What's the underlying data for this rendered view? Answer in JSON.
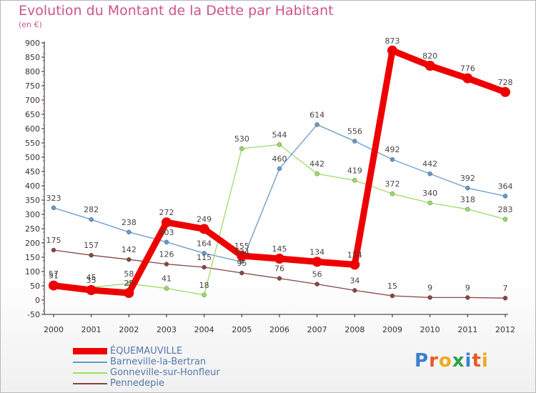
{
  "header": {
    "title": "Evolution du Montant de la Dette par Habitant",
    "subtitle": "(en €)"
  },
  "logo": {
    "text": "Proxiti",
    "colors": [
      "#3a7fd0",
      "#e85b2a",
      "#f2a81d",
      "#2aa34a",
      "#3a7fd0",
      "#e85b2a",
      "#f2a81d"
    ]
  },
  "chart_data": {
    "type": "line",
    "title": "Evolution du Montant de la Dette par Habitant",
    "subtitle": "(en €)",
    "xlabel": "",
    "ylabel": "",
    "x": [
      "2000",
      "2001",
      "2002",
      "2003",
      "2004",
      "2005",
      "2006",
      "2007",
      "2008",
      "2009",
      "2010",
      "2011",
      "2012"
    ],
    "ylim": [
      -50,
      900
    ],
    "yticks": [
      -50,
      0,
      50,
      100,
      150,
      200,
      250,
      300,
      350,
      400,
      450,
      500,
      550,
      600,
      650,
      700,
      750,
      800,
      850,
      900
    ],
    "grid": false,
    "legend_position": "bottom-left",
    "series": [
      {
        "name": "ÉQUEMAUVILLE",
        "color": "#ee0000",
        "values": [
          51,
          35,
          25,
          272,
          249,
          155,
          145,
          134,
          124,
          873,
          820,
          776,
          728
        ],
        "labels": [
          "51",
          "35",
          "25",
          "272",
          "249",
          "155",
          "145",
          "134",
          "124",
          "873",
          "820",
          "776",
          "728"
        ]
      },
      {
        "name": "Barneville-la-Bertran",
        "color": "#6699cc",
        "values": [
          323,
          282,
          238,
          203,
          164,
          134,
          460,
          614,
          556,
          492,
          442,
          392,
          364
        ],
        "labels": [
          "323",
          "282",
          "238",
          "203",
          "164",
          "134",
          "460",
          "614",
          "556",
          "492",
          "442",
          "392",
          "364"
        ]
      },
      {
        "name": "Gonneville-sur-Honfleur",
        "color": "#99dd66",
        "values": [
          57,
          45,
          58,
          41,
          18,
          530,
          544,
          442,
          419,
          372,
          340,
          318,
          283
        ],
        "labels": [
          "57",
          "45",
          "58",
          "41",
          "18",
          "530",
          "544",
          "442",
          "419",
          "372",
          "340",
          "318",
          "283"
        ]
      },
      {
        "name": "Pennedepie",
        "color": "#884444",
        "values": [
          175,
          157,
          142,
          126,
          115,
          95,
          76,
          56,
          34,
          15,
          9,
          9,
          7
        ],
        "labels": [
          "175",
          "157",
          "142",
          "126",
          "115",
          "95",
          "76",
          "56",
          "34",
          "15",
          "9",
          "9",
          "7"
        ]
      }
    ]
  }
}
